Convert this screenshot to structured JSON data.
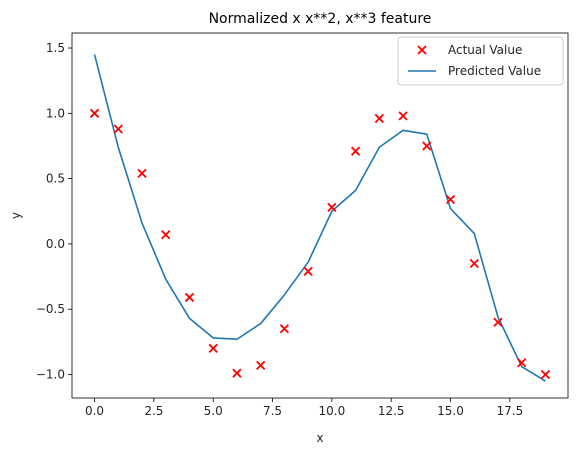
{
  "chart_data": {
    "type": "scatter",
    "title": "Normalized x x**2, x**3 feature",
    "xlabel": "x",
    "ylabel": "y",
    "xlim": [
      -0.95,
      19.95
    ],
    "ylim": [
      -1.18,
      1.615
    ],
    "x_ticks": [
      0.0,
      2.5,
      5.0,
      7.5,
      10.0,
      12.5,
      15.0,
      17.5
    ],
    "x_tick_labels": [
      "0.0",
      "2.5",
      "5.0",
      "7.5",
      "10.0",
      "12.5",
      "15.0",
      "17.5"
    ],
    "y_ticks": [
      -1.0,
      -0.5,
      0.0,
      0.5,
      1.0,
      1.5
    ],
    "y_tick_labels": [
      "−1.0",
      "−0.5",
      "0.0",
      "0.5",
      "1.0",
      "1.5"
    ],
    "legend_position": "upper-right",
    "series": [
      {
        "name": "Actual Value",
        "kind": "scatter",
        "marker": "x",
        "color": "#ff0000",
        "x": [
          0,
          1,
          2,
          3,
          4,
          5,
          6,
          7,
          8,
          9,
          10,
          11,
          12,
          13,
          14,
          15,
          16,
          17,
          18,
          19
        ],
        "y": [
          1.0,
          0.88,
          0.54,
          0.07,
          -0.41,
          -0.8,
          -0.99,
          -0.93,
          -0.65,
          -0.21,
          0.28,
          0.71,
          0.96,
          0.98,
          0.75,
          0.34,
          -0.15,
          -0.6,
          -0.91,
          -1.0
        ]
      },
      {
        "name": "Predicted Value",
        "kind": "line",
        "color": "#1f77b4",
        "x": [
          0,
          1,
          2,
          3,
          4,
          5,
          6,
          7,
          8,
          9,
          10,
          11,
          12,
          13,
          14,
          15,
          16,
          17,
          18,
          19
        ],
        "y": [
          1.45,
          0.74,
          0.16,
          -0.27,
          -0.57,
          -0.72,
          -0.73,
          -0.61,
          -0.39,
          -0.14,
          0.25,
          0.41,
          0.74,
          0.87,
          0.84,
          0.27,
          0.08,
          -0.56,
          -0.94,
          -1.05
        ]
      }
    ]
  }
}
